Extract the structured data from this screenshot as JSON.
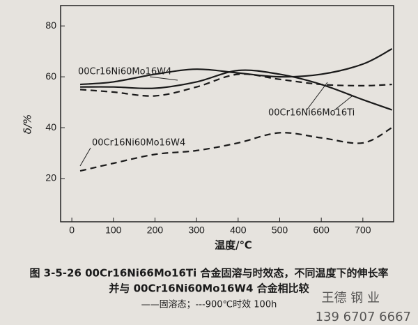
{
  "chart_data": {
    "type": "line",
    "x_label": "温度/℃",
    "y_label": "δ/%",
    "x": [
      20,
      100,
      200,
      300,
      400,
      500,
      600,
      700,
      770
    ],
    "series": [
      {
        "style": "solid",
        "color": "#1a1a1a",
        "values": [
          57,
          58,
          61,
          63,
          61.5,
          60,
          61,
          65,
          71
        ]
      },
      {
        "style": "solid",
        "color": "#1a1a1a",
        "values": [
          56,
          56,
          55.5,
          58,
          62.5,
          61,
          57,
          51,
          47
        ]
      },
      {
        "style": "dashed",
        "color": "#1a1a1a",
        "values": [
          55,
          54,
          52.5,
          56,
          61,
          59,
          57,
          56.5,
          57
        ]
      },
      {
        "style": "dashed",
        "color": "#1a1a1a",
        "values": [
          23,
          26,
          29.5,
          31,
          34,
          38,
          36,
          34,
          40
        ]
      }
    ],
    "annotations": [
      "00Cr16Ni60Mo16W4",
      "00Cr16Ni66Mo16Ti",
      "00Cr16Ni60Mo16W4"
    ],
    "xlim": [
      -27,
      774
    ],
    "ylim": [
      3,
      88
    ],
    "xticks": [
      0,
      100,
      200,
      300,
      400,
      500,
      600,
      700
    ],
    "yticks": [
      20,
      40,
      60,
      80
    ],
    "caption": [
      "图 3-5-26   00Cr16Ni66Mo16Ti 合金固溶与时效态，不同温度下的伸长率",
      "并与 00Cr16Ni60Mo16W4 合金相比较",
      "——固溶态；---900℃时效 100h"
    ],
    "watermark": [
      "王德 钢 业",
      "139 6707 6667"
    ]
  }
}
